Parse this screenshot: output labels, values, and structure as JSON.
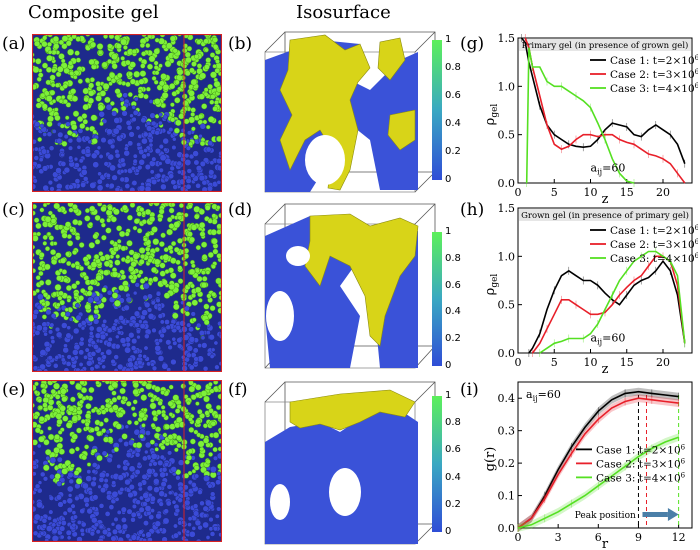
{
  "headers": {
    "composite": "Composite gel",
    "isosurface": "Isosurface"
  },
  "panels": {
    "a": "(a)",
    "b": "(b)",
    "c": "(c)",
    "d": "(d)",
    "e": "(e)",
    "f": "(f)",
    "g": "(g)",
    "h": "(h)",
    "i": "(i)"
  },
  "colorbar": {
    "ticks": [
      "1",
      "0.8",
      "0.6",
      "0.4",
      "0.2",
      "0"
    ],
    "colors": [
      "#5cf05a",
      "#3aa8c2",
      "#2f4dd6"
    ]
  },
  "particle_colors": {
    "primary": "#7ef03a",
    "grown": "#3b4bd8",
    "box": "#d82222"
  },
  "chart_data": [
    {
      "type": "line",
      "panel": "(g)",
      "title": "Primary gel (in presence of grown gel)",
      "xlabel": "z",
      "ylabel": "ρ",
      "ylabel_sub": "gel",
      "annotation": "a",
      "annotation_sub": "ij",
      "annotation_value": "=60",
      "xlim": [
        0,
        24
      ],
      "ylim": [
        0,
        1.5
      ],
      "xticks": [
        "0",
        "5",
        "10",
        "15",
        "20"
      ],
      "yticks": [
        "0.0",
        "0.5",
        "1.0",
        "1.5"
      ],
      "series": [
        {
          "name": "Case 1: t=2×10",
          "exp": "6",
          "color": "#000000",
          "x": [
            0.5,
            1,
            1.5,
            2,
            3,
            4,
            5,
            6,
            7,
            8,
            9,
            10,
            11,
            12,
            13,
            14,
            15,
            16,
            17,
            18,
            19,
            20,
            21,
            22,
            23
          ],
          "y": [
            1.5,
            1.45,
            1.25,
            1.1,
            0.8,
            0.6,
            0.5,
            0.45,
            0.4,
            0.38,
            0.37,
            0.38,
            0.45,
            0.55,
            0.62,
            0.6,
            0.58,
            0.5,
            0.48,
            0.55,
            0.6,
            0.55,
            0.5,
            0.4,
            0.2
          ]
        },
        {
          "name": "Case 2: t=3×10",
          "exp": "6",
          "color": "#e8202a",
          "x": [
            1,
            1.5,
            2,
            3,
            4,
            5,
            6,
            7,
            8,
            9,
            10,
            11,
            12,
            13,
            14,
            15,
            16,
            17,
            18,
            19,
            20,
            21,
            22,
            23
          ],
          "y": [
            1.5,
            1.4,
            1.2,
            0.9,
            0.6,
            0.4,
            0.35,
            0.38,
            0.45,
            0.5,
            0.5,
            0.48,
            0.5,
            0.5,
            0.45,
            0.42,
            0.4,
            0.35,
            0.3,
            0.28,
            0.25,
            0.2,
            0.1,
            0.0
          ]
        },
        {
          "name": "Case 3: t=4×10",
          "exp": "6",
          "color": "#55e022",
          "x": [
            1.2,
            1.5,
            2,
            3,
            4,
            5,
            6,
            7,
            8,
            9,
            10,
            11,
            12,
            13,
            14,
            15,
            16
          ],
          "y": [
            0.0,
            1.4,
            1.2,
            1.2,
            1.05,
            1.0,
            1.0,
            0.95,
            0.9,
            0.85,
            0.78,
            0.62,
            0.45,
            0.25,
            0.1,
            0.02,
            0.0
          ]
        }
      ]
    },
    {
      "type": "line",
      "panel": "(h)",
      "title": "Grown gel (in presence of primary gel)",
      "xlabel": "z",
      "ylabel": "ρ",
      "ylabel_sub": "gel",
      "annotation": "a",
      "annotation_sub": "ij",
      "annotation_value": "=60",
      "xlim": [
        0,
        24
      ],
      "ylim": [
        0,
        1.5
      ],
      "xticks": [
        "0",
        "5",
        "10",
        "15",
        "20"
      ],
      "yticks": [
        "0.0",
        "0.5",
        "1.0",
        "1.5"
      ],
      "series": [
        {
          "name": "Case 1: t=2×10",
          "exp": "6",
          "color": "#000000",
          "x": [
            1.5,
            2,
            3,
            4,
            5,
            6,
            7,
            8,
            9,
            10,
            11,
            12,
            13,
            14,
            15,
            16,
            17,
            18,
            19,
            20,
            21,
            22,
            23
          ],
          "y": [
            0.0,
            0.05,
            0.2,
            0.45,
            0.65,
            0.8,
            0.85,
            0.8,
            0.75,
            0.75,
            0.7,
            0.62,
            0.55,
            0.5,
            0.6,
            0.7,
            0.75,
            0.78,
            0.85,
            0.95,
            0.85,
            0.6,
            0.1
          ]
        },
        {
          "name": "Case 2: t=3×10",
          "exp": "6",
          "color": "#e8202a",
          "x": [
            2,
            3,
            4,
            5,
            6,
            7,
            8,
            9,
            10,
            11,
            12,
            13,
            14,
            15,
            16,
            17,
            18,
            19,
            20,
            21,
            22,
            23
          ],
          "y": [
            0.0,
            0.1,
            0.25,
            0.4,
            0.55,
            0.55,
            0.5,
            0.45,
            0.4,
            0.4,
            0.42,
            0.5,
            0.6,
            0.68,
            0.75,
            0.8,
            0.9,
            1.0,
            1.0,
            0.95,
            0.7,
            0.1
          ]
        },
        {
          "name": "Case 3: t=4×10",
          "exp": "6",
          "color": "#55e022",
          "x": [
            3,
            4,
            5,
            6,
            7,
            8,
            9,
            10,
            11,
            12,
            13,
            14,
            15,
            16,
            17,
            18,
            19,
            20,
            21,
            22,
            23
          ],
          "y": [
            0.0,
            0.05,
            0.1,
            0.12,
            0.15,
            0.15,
            0.15,
            0.2,
            0.3,
            0.45,
            0.6,
            0.75,
            0.85,
            0.95,
            1.0,
            1.05,
            1.05,
            1.0,
            0.95,
            0.8,
            0.1
          ]
        }
      ]
    },
    {
      "type": "line",
      "panel": "(i)",
      "xlabel": "r",
      "ylabel": "g(r)",
      "annotation": "a",
      "annotation_sub": "ij",
      "annotation_value": "=60",
      "peak_label": "Peak position",
      "peak_lines_x": [
        9,
        9.6,
        12
      ],
      "xlim": [
        0,
        13
      ],
      "ylim": [
        0,
        0.45
      ],
      "xticks": [
        "0",
        "3",
        "6",
        "9",
        "12"
      ],
      "yticks": [
        "0.0",
        "0.1",
        "0.2",
        "0.3",
        "0.4"
      ],
      "series": [
        {
          "name": "Case 1: t=2×10",
          "exp": "6",
          "color": "#000000",
          "x": [
            0,
            1,
            2,
            3,
            4,
            5,
            6,
            7,
            8,
            9,
            10,
            11,
            12
          ],
          "y": [
            0.0,
            0.03,
            0.1,
            0.18,
            0.25,
            0.31,
            0.36,
            0.395,
            0.415,
            0.42,
            0.415,
            0.41,
            0.405
          ]
        },
        {
          "name": "Case 2: t=3×10",
          "exp": "6",
          "color": "#e8202a",
          "x": [
            0,
            1,
            2,
            3,
            4,
            5,
            6,
            7,
            8,
            9,
            10,
            11,
            12
          ],
          "y": [
            0.0,
            0.03,
            0.09,
            0.165,
            0.23,
            0.29,
            0.335,
            0.37,
            0.39,
            0.4,
            0.395,
            0.39,
            0.385
          ]
        },
        {
          "name": "Case 3: t=4×10",
          "exp": "6",
          "color": "#55e022",
          "x": [
            0,
            1,
            2,
            3,
            4,
            5,
            6,
            7,
            8,
            9,
            10,
            11,
            12
          ],
          "y": [
            0.0,
            0.01,
            0.03,
            0.05,
            0.075,
            0.1,
            0.13,
            0.16,
            0.19,
            0.22,
            0.245,
            0.265,
            0.28
          ]
        }
      ]
    }
  ]
}
